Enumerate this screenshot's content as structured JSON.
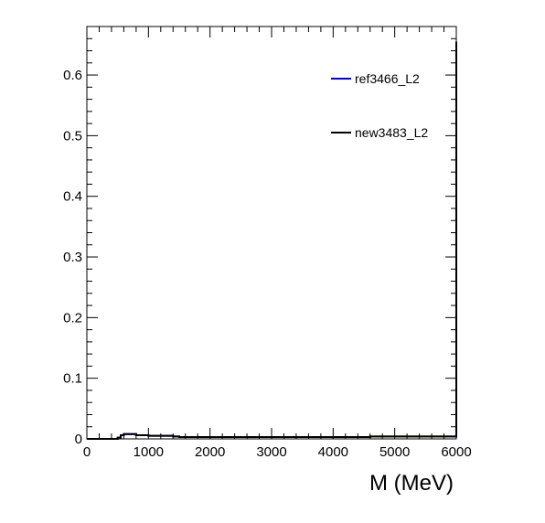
{
  "chart_data": {
    "type": "line",
    "title": "",
    "xlabel": "M (MeV)",
    "ylabel": "",
    "xlim": [
      0,
      6000
    ],
    "ylim": [
      0,
      0.68
    ],
    "grid": false,
    "legend_position": "top-right",
    "x_ticks": [
      0,
      1000,
      2000,
      3000,
      4000,
      5000,
      6000
    ],
    "y_ticks": [
      0,
      0.1,
      0.2,
      0.3,
      0.4,
      0.5,
      0.6
    ],
    "x_tick_labels": [
      "0",
      "1000",
      "2000",
      "3000",
      "4000",
      "5000",
      "6000"
    ],
    "y_tick_labels": [
      "0",
      "0.1",
      "0.2",
      "0.3",
      "0.4",
      "0.5",
      "0.6"
    ],
    "series": [
      {
        "name": "ref3466_L2",
        "color": "#0000cc",
        "step": true,
        "x": [
          0,
          450,
          500,
          550,
          600,
          700,
          800,
          1000,
          1400,
          1500,
          4500,
          4600,
          5950,
          6000
        ],
        "y": [
          0,
          0,
          0.002,
          0.006,
          0.008,
          0.008,
          0.006,
          0.005,
          0.004,
          0.003,
          0.003,
          0.004,
          0.004,
          0.655
        ]
      },
      {
        "name": "new3483_L2",
        "color": "#000000",
        "step": true,
        "x": [
          0,
          450,
          500,
          550,
          600,
          700,
          800,
          1000,
          1400,
          1500,
          4500,
          4600,
          5950,
          6000
        ],
        "y": [
          0,
          0,
          0.002,
          0.006,
          0.008,
          0.008,
          0.006,
          0.005,
          0.004,
          0.003,
          0.003,
          0.004,
          0.004,
          0.655
        ]
      }
    ]
  }
}
